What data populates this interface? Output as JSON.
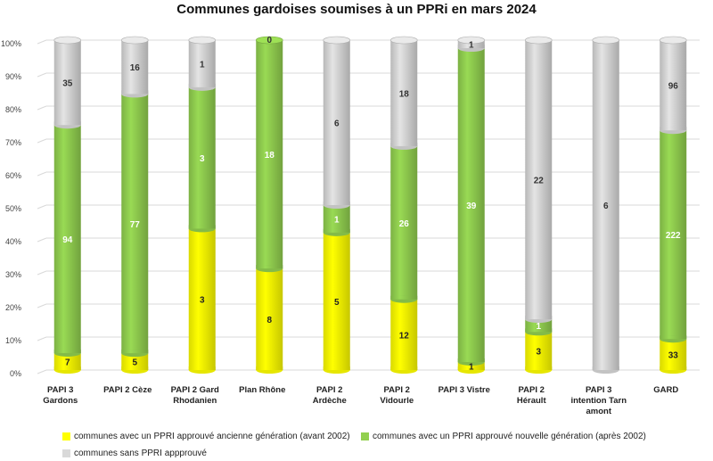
{
  "chart_data": {
    "type": "bar",
    "stacked": "percent",
    "title": "Communes gardoises soumises à un PPRi en mars 2024",
    "xlabel": "",
    "ylabel": "",
    "ylim": [
      0,
      100
    ],
    "y_ticks": [
      "0%",
      "10%",
      "20%",
      "30%",
      "40%",
      "50%",
      "60%",
      "70%",
      "80%",
      "90%",
      "100%"
    ],
    "grid": true,
    "legend_position": "bottom",
    "categories": [
      [
        "PAPI 3",
        "Gardons"
      ],
      [
        "PAPI 2 Cèze"
      ],
      [
        "PAPI 2 Gard",
        "Rhodanien"
      ],
      [
        "Plan Rhône"
      ],
      [
        "PAPI 2",
        "Ardèche"
      ],
      [
        "PAPI 2",
        "Vidourle"
      ],
      [
        "PAPI 3 Vistre"
      ],
      [
        "PAPI 2",
        "Hérault"
      ],
      [
        "PAPI 3",
        "intention Tarn",
        "amont"
      ],
      [
        "GARD"
      ]
    ],
    "series": [
      {
        "name": "communes avec un PPRI approuvé ancienne génération (avant 2002)",
        "color": "#ffff00",
        "values": [
          7,
          5,
          3,
          8,
          5,
          12,
          1,
          3,
          0,
          33
        ],
        "labels": [
          "7",
          "5",
          "3",
          "8",
          "5",
          "12",
          "1",
          "3",
          "",
          "33"
        ],
        "label_color": "#222222"
      },
      {
        "name": "communes avec un PPRI approuvé nouvelle génération (après 2002)",
        "color": "#92d050",
        "values": [
          94,
          77,
          3,
          18,
          1,
          26,
          39,
          1,
          0,
          222
        ],
        "labels": [
          "94",
          "77",
          "3",
          "18",
          "1",
          "26",
          "39",
          "1",
          "",
          "222"
        ],
        "label_color": "#ffffff"
      },
      {
        "name": "communes sans PPRI appprouvé",
        "color": "#d9d9d9",
        "values": [
          35,
          16,
          1,
          0,
          6,
          18,
          1,
          22,
          6,
          96
        ],
        "labels": [
          "35",
          "16",
          "1",
          "0",
          "6",
          "18",
          "1",
          "22",
          "6",
          "96"
        ],
        "label_color": "#333333"
      }
    ]
  }
}
